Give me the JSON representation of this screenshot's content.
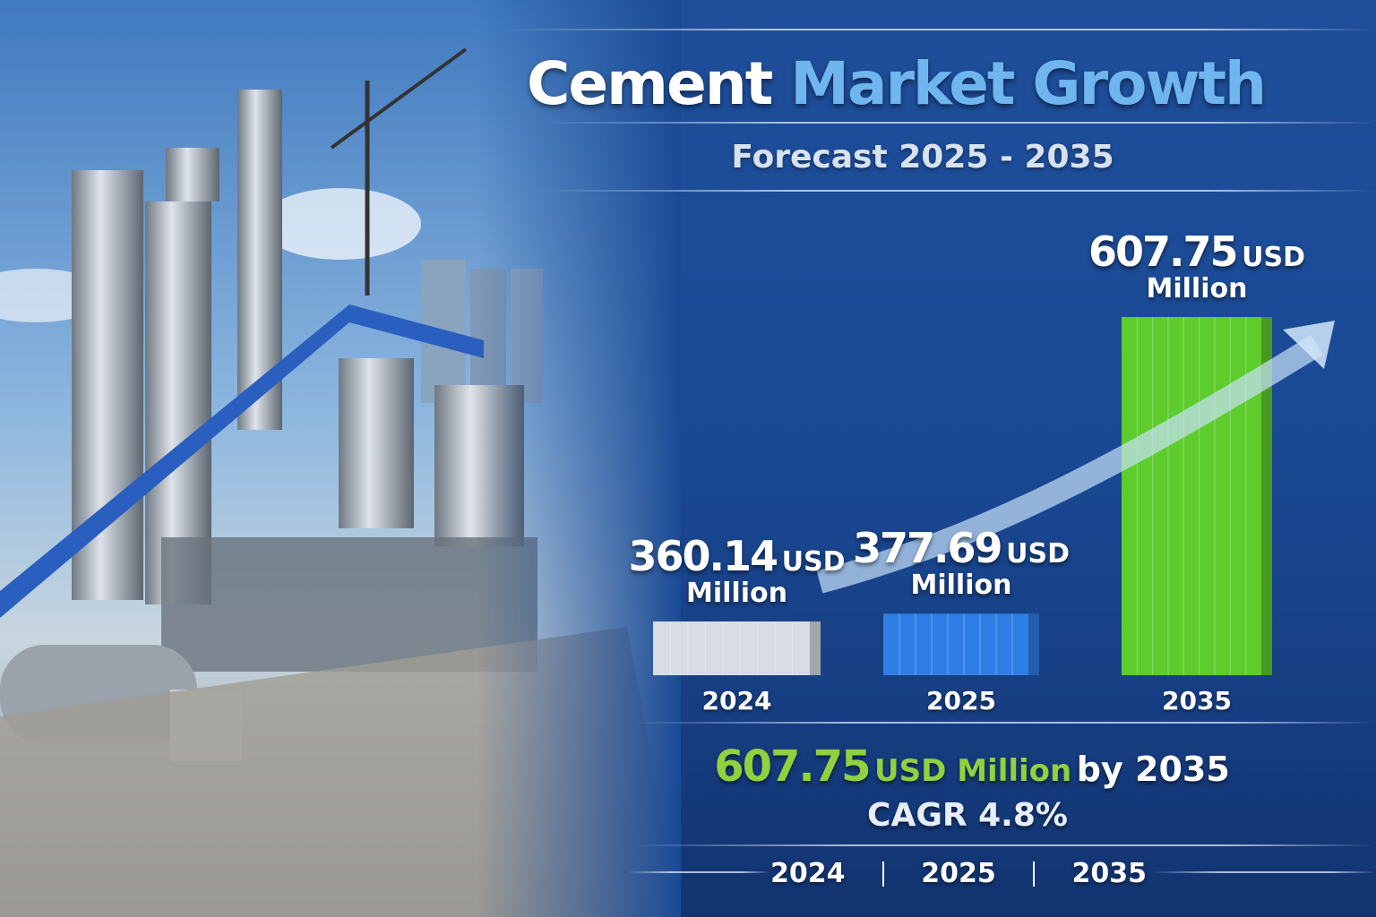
{
  "header": {
    "title_part1": "Cement",
    "title_part2": "Market Growth",
    "subtitle": "Forecast 2025 - 2035"
  },
  "colors": {
    "background": "#1a4a95",
    "accent_blue": "#6fb6f0",
    "accent_green": "#8fd13f",
    "bar_2024": "#d8dde3",
    "bar_2025": "#2f7ee6",
    "bar_2035": "#5fcc2e"
  },
  "chart_data": {
    "type": "bar",
    "categories": [
      "2024",
      "2025",
      "2035"
    ],
    "values": [
      360.14,
      377.69,
      607.75
    ],
    "value_labels": [
      {
        "number": "360.14",
        "unit": "USD",
        "scale": "Million"
      },
      {
        "number": "377.69",
        "unit": "USD",
        "scale": "Million"
      },
      {
        "number": "607.75",
        "unit": "USD",
        "scale": "Million"
      }
    ],
    "bar_colors": [
      "#d8dde3",
      "#2f7ee6",
      "#5fcc2e"
    ],
    "trend_arrow": true,
    "grid": false,
    "title": "",
    "xlabel": "",
    "ylabel": ""
  },
  "summary": {
    "value": "607.75",
    "unit": "USD Million",
    "suffix": "by 2035",
    "cagr": "CAGR 4.8%"
  },
  "footer_years": [
    "2024",
    "2025",
    "2035"
  ]
}
